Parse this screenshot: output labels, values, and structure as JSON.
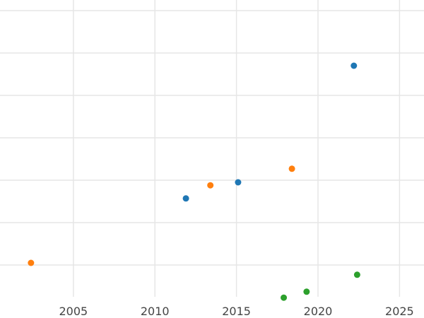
{
  "chart_data": {
    "type": "scatter",
    "title": "",
    "xlabel": "",
    "ylabel": "",
    "xlim": [
      2000.5,
      2026.5
    ],
    "ylim": [
      0.25,
      7.25
    ],
    "x_ticks": [
      "2005",
      "2010",
      "2015",
      "2020",
      "2025"
    ],
    "x_tick_values": [
      2005,
      2010,
      2015,
      2020,
      2025
    ],
    "y_grid_values": [
      1,
      2,
      3,
      4,
      5,
      6,
      7
    ],
    "grid": true,
    "legend": "none",
    "series": [
      {
        "color": "#1f77b4",
        "points": [
          {
            "x": 2011.9,
            "y": 2.57
          },
          {
            "x": 2015.1,
            "y": 2.95
          },
          {
            "x": 2022.2,
            "y": 5.7
          }
        ]
      },
      {
        "color": "#ff7f0e",
        "points": [
          {
            "x": 2002.4,
            "y": 1.05
          },
          {
            "x": 2013.4,
            "y": 2.88
          },
          {
            "x": 2018.4,
            "y": 3.27
          }
        ]
      },
      {
        "color": "#2ca02c",
        "points": [
          {
            "x": 2017.9,
            "y": 0.23
          },
          {
            "x": 2019.3,
            "y": 0.37
          },
          {
            "x": 2022.4,
            "y": 0.77
          }
        ]
      }
    ]
  }
}
